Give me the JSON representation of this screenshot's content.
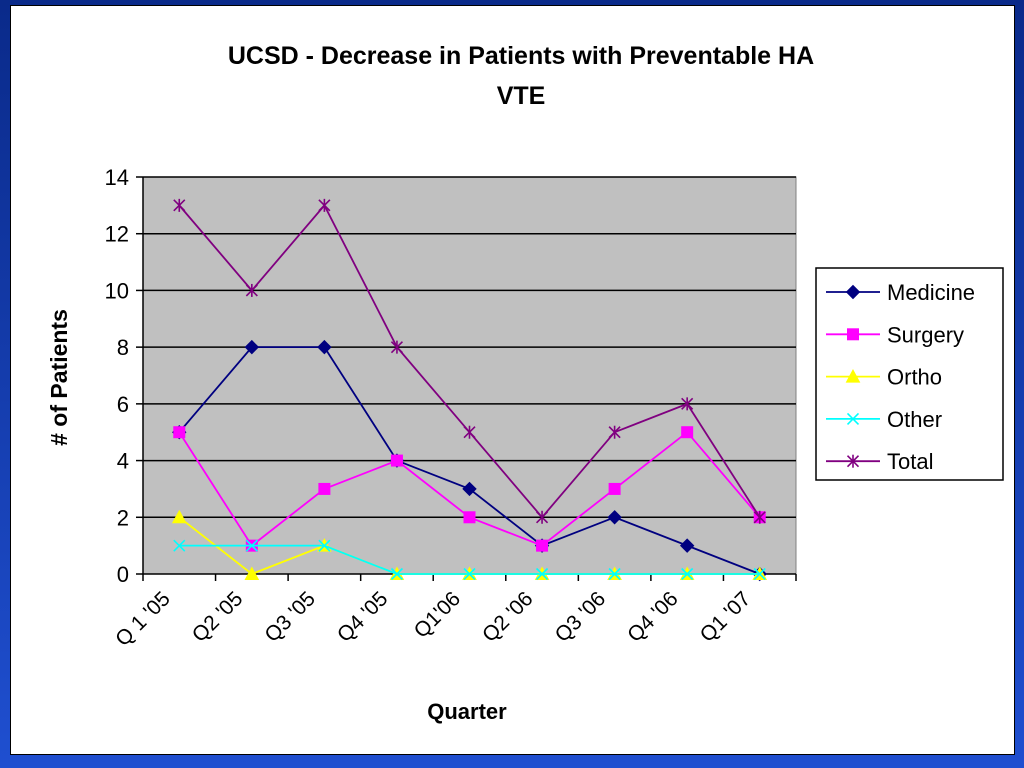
{
  "chart_data": {
    "type": "line",
    "title": "UCSD - Decrease in Patients with Preventable HA VTE",
    "title_lines": [
      "UCSD - Decrease in Patients with Preventable HA",
      "VTE"
    ],
    "xlabel": "Quarter",
    "ylabel": "# of Patients",
    "ylim": [
      0,
      14
    ],
    "yticks": [
      "0",
      "2",
      "4",
      "6",
      "8",
      "10",
      "12",
      "14"
    ],
    "grid": true,
    "legend_position": "right",
    "categories": [
      "Q 1 '05",
      "Q2 '05",
      "Q3 '05",
      "Q4 '05",
      "Q1'06",
      "Q2 '06",
      "Q3 '06",
      "Q4 '06",
      "Q1 '07"
    ],
    "series": [
      {
        "name": "Medicine",
        "color": "#000080",
        "marker": "diamond",
        "values": [
          5,
          8,
          8,
          4,
          3,
          1,
          2,
          1,
          0
        ]
      },
      {
        "name": "Surgery",
        "color": "#ff00ff",
        "marker": "square",
        "values": [
          5,
          1,
          3,
          4,
          2,
          1,
          3,
          5,
          2
        ]
      },
      {
        "name": "Ortho",
        "color": "#ffff00",
        "marker": "triangle",
        "values": [
          2,
          0,
          1,
          0,
          0,
          0,
          0,
          0,
          0
        ]
      },
      {
        "name": "Other",
        "color": "#00ffff",
        "marker": "x",
        "values": [
          1,
          1,
          1,
          0,
          0,
          0,
          0,
          0,
          0
        ]
      },
      {
        "name": "Total",
        "color": "#800080",
        "marker": "star",
        "values": [
          13,
          10,
          13,
          8,
          5,
          2,
          5,
          6,
          2
        ]
      }
    ],
    "colors": {
      "plot_background": "#c0c0c0",
      "slide_border": "#1f4fd0"
    }
  }
}
